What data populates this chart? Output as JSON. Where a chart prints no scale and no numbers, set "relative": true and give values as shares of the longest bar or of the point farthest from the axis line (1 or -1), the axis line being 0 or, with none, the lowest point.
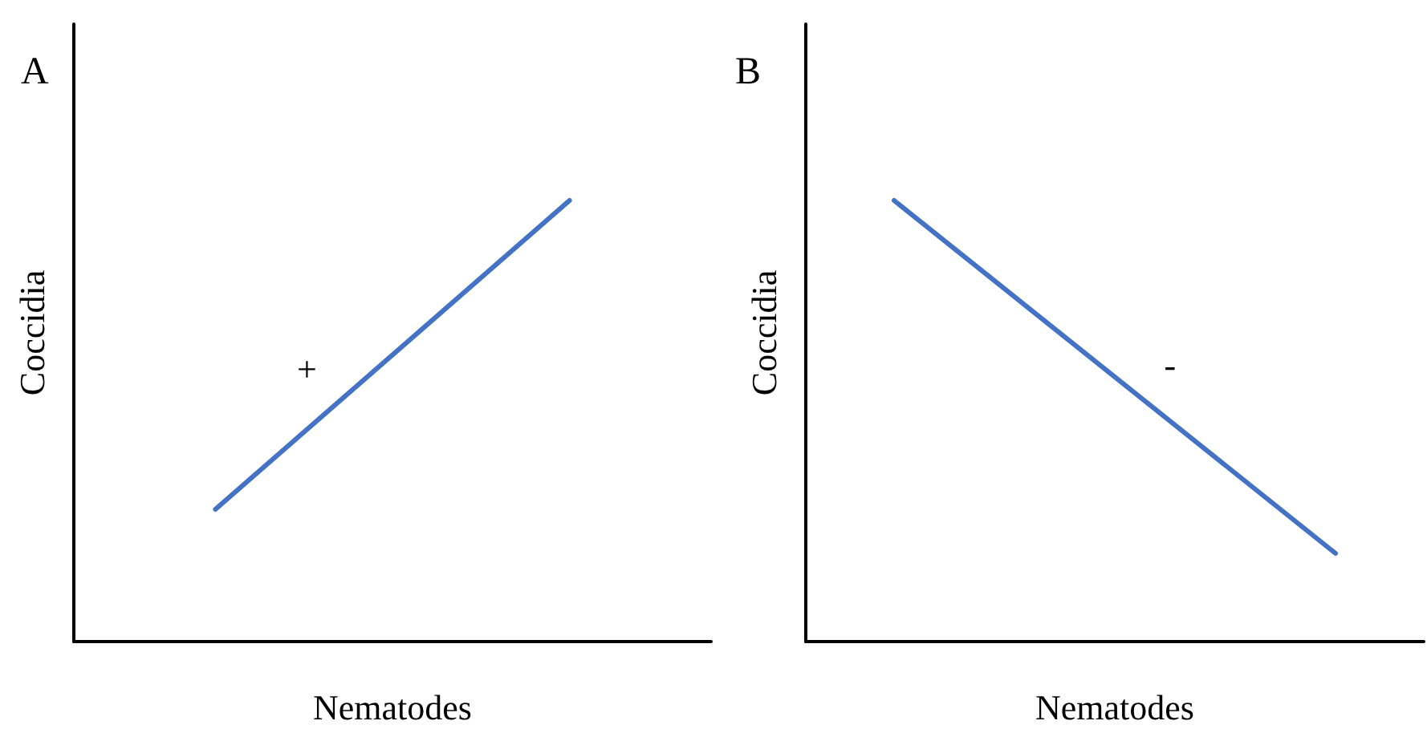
{
  "chart_data": [
    {
      "type": "line",
      "title": "A",
      "xlabel": "Nematodes",
      "ylabel": "Coccidia",
      "relative": true,
      "tick_labels": false,
      "marker": "none",
      "line_style": "solid",
      "annotations": [
        "+"
      ],
      "categories": [
        null,
        null,
        null,
        null,
        null,
        null,
        null,
        null,
        null,
        null
      ],
      "series": [
        {
          "color": "#4472c4",
          "values": [
            null,
            null,
            0.3,
            null,
            null,
            null,
            null,
            1,
            null,
            null
          ]
        }
      ]
    },
    {
      "type": "line",
      "title": "B",
      "xlabel": "Nematodes",
      "ylabel": "Coccidia",
      "relative": true,
      "tick_labels": false,
      "marker": "none",
      "line_style": "solid",
      "annotations": [
        "-"
      ],
      "categories": [
        null,
        null,
        null,
        null,
        null,
        null,
        null,
        null
      ],
      "series": [
        {
          "color": "#4472c4",
          "values": [
            null,
            1,
            null,
            null,
            null,
            null,
            0.2,
            null
          ]
        }
      ]
    }
  ]
}
